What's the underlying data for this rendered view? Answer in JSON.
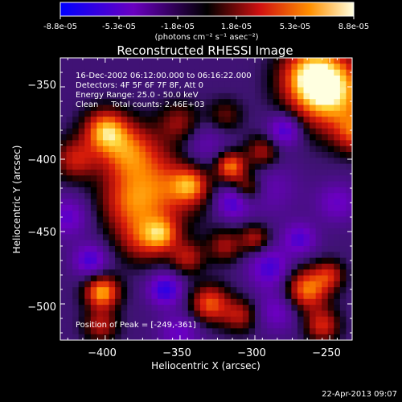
{
  "colorbar": {
    "tick_labels": [
      "-8.8e-05",
      "-5.3e-05",
      "-1.8e-05",
      "1.8e-05",
      "5.3e-05",
      "8.8e-05"
    ],
    "unit_label": "(photons cm⁻² s⁻¹ asec⁻²)",
    "range": [
      -8.8e-05,
      8.8e-05
    ]
  },
  "chart_data": {
    "type": "heatmap",
    "title": "Reconstructed RHESSI Image",
    "xlabel": "Heliocentric X (arcsec)",
    "ylabel": "Heliocentric Y (arcsec)",
    "xlim": [
      -430,
      -235
    ],
    "ylim": [
      -525,
      -330
    ],
    "x_ticks": [
      -400,
      -350,
      -300,
      -250
    ],
    "y_ticks": [
      -350,
      -400,
      -450,
      -500
    ],
    "x_tick_labels": [
      "−400",
      "−350",
      "−300",
      "−250"
    ],
    "y_tick_labels": [
      "−350",
      "−400",
      "−450",
      "−500"
    ],
    "info_lines": [
      "16-Dec-2002 06:12:00.000 to 06:16:22.000",
      "Detectors: 4F 5F 6F 7F 8F, Att 0",
      "Energy Range: 25.0 - 50.0 keV",
      "Clean     Total counts: 2.46E+03"
    ],
    "peak_label": "Position of Peak = [-249,-361]",
    "peak": [
      -249,
      -361
    ],
    "blobs": [
      {
        "x": -249,
        "y": -355,
        "v": 1.0,
        "s": 18
      },
      {
        "x": -262,
        "y": -342,
        "v": 0.85,
        "s": 14
      },
      {
        "x": -232,
        "y": -382,
        "v": 0.6,
        "s": 10
      },
      {
        "x": -400,
        "y": -380,
        "v": 0.85,
        "s": 10
      },
      {
        "x": -385,
        "y": -395,
        "v": 0.75,
        "s": 14
      },
      {
        "x": -360,
        "y": -420,
        "v": 0.65,
        "s": 18
      },
      {
        "x": -385,
        "y": -430,
        "v": 0.55,
        "s": 14
      },
      {
        "x": -350,
        "y": -375,
        "v": 0.45,
        "s": 10
      },
      {
        "x": -375,
        "y": -455,
        "v": 0.55,
        "s": 12
      },
      {
        "x": -362,
        "y": -452,
        "v": 0.6,
        "s": 8
      },
      {
        "x": -420,
        "y": -400,
        "v": 0.55,
        "s": 10
      },
      {
        "x": -320,
        "y": -370,
        "v": 0.35,
        "s": 8
      },
      {
        "x": -316,
        "y": -405,
        "v": 0.85,
        "s": 7
      },
      {
        "x": -305,
        "y": -420,
        "v": 0.5,
        "s": 7
      },
      {
        "x": -343,
        "y": -418,
        "v": 0.6,
        "s": 8
      },
      {
        "x": -345,
        "y": -468,
        "v": 0.5,
        "s": 8
      },
      {
        "x": -320,
        "y": -460,
        "v": 0.45,
        "s": 8
      },
      {
        "x": -300,
        "y": -455,
        "v": 0.5,
        "s": 7
      },
      {
        "x": -330,
        "y": -500,
        "v": 0.75,
        "s": 9
      },
      {
        "x": -310,
        "y": -508,
        "v": 0.5,
        "s": 8
      },
      {
        "x": -265,
        "y": -490,
        "v": 0.85,
        "s": 10
      },
      {
        "x": -250,
        "y": -480,
        "v": 0.5,
        "s": 7
      },
      {
        "x": -255,
        "y": -515,
        "v": 0.6,
        "s": 8
      },
      {
        "x": -402,
        "y": -492,
        "v": 0.95,
        "s": 8
      },
      {
        "x": -403,
        "y": -515,
        "v": 0.5,
        "s": 8
      },
      {
        "x": -295,
        "y": -395,
        "v": 0.5,
        "s": 8
      },
      {
        "x": -290,
        "y": -420,
        "v": -0.25,
        "s": 14
      },
      {
        "x": -315,
        "y": -430,
        "v": -0.5,
        "s": 8
      },
      {
        "x": -360,
        "y": -490,
        "v": -0.6,
        "s": 8
      },
      {
        "x": -410,
        "y": -470,
        "v": -0.5,
        "s": 8
      },
      {
        "x": -290,
        "y": -475,
        "v": -0.5,
        "s": 10
      },
      {
        "x": -270,
        "y": -455,
        "v": -0.45,
        "s": 8
      },
      {
        "x": -335,
        "y": -390,
        "v": -0.3,
        "s": 12
      },
      {
        "x": -280,
        "y": -380,
        "v": -0.55,
        "s": 8
      },
      {
        "x": -285,
        "y": -505,
        "v": -0.35,
        "s": 10
      },
      {
        "x": -425,
        "y": -440,
        "v": -0.4,
        "s": 10
      },
      {
        "x": -245,
        "y": -430,
        "v": -0.35,
        "s": 10
      },
      {
        "x": -350,
        "y": -520,
        "v": -0.35,
        "s": 10
      }
    ]
  },
  "footer": {
    "timestamp": "22-Apr-2013 09:07"
  }
}
